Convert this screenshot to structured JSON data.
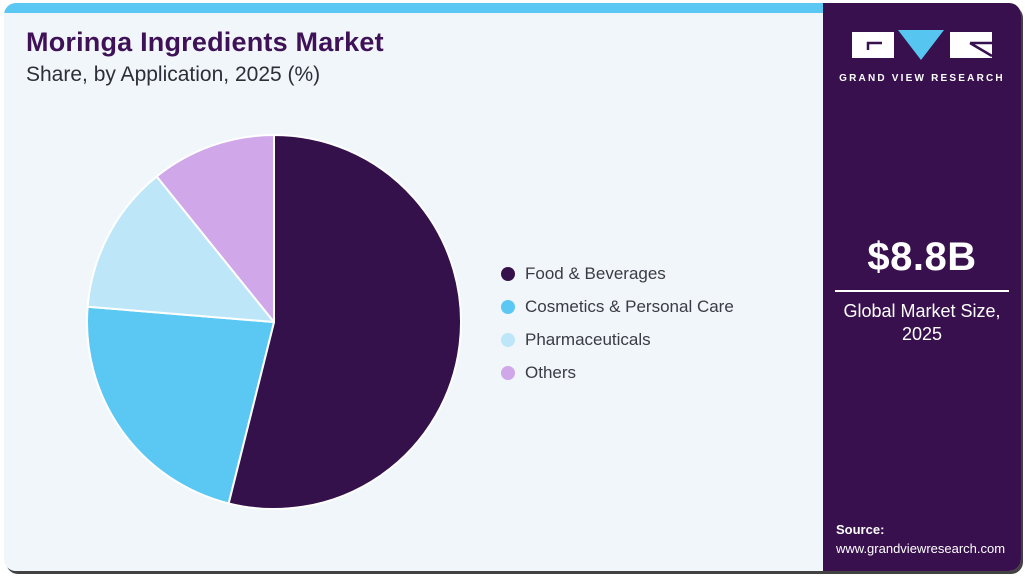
{
  "header": {
    "title": "Moringa Ingredients Market",
    "subtitle": "Share, by Application, 2025 (%)"
  },
  "chart_data": {
    "type": "pie",
    "title": "Moringa Ingredients Market Share, by Application, 2025 (%)",
    "categories": [
      "Food & Beverages",
      "Cosmetics & Personal Care",
      "Pharmaceuticals",
      "Others"
    ],
    "values": [
      53.9,
      22.4,
      12.9,
      10.8
    ],
    "unit": "%",
    "colors": [
      "#35114b",
      "#5bc8f3",
      "#bde7f8",
      "#d0a7e9"
    ],
    "start_angle_deg": 0,
    "direction": "clockwise",
    "legend_position": "right",
    "slice_stroke": "#ffffff"
  },
  "sidebar": {
    "logo": {
      "icon": "gvr-logo",
      "brand": "GRAND VIEW RESEARCH",
      "triangle_color": "#56c6f1",
      "block_color": "#ffffff"
    },
    "market_size": {
      "value": "$8.8B",
      "label": "Global Market Size, 2025"
    },
    "source": {
      "label": "Source:",
      "url": "www.grandviewresearch.com"
    }
  },
  "theme": {
    "top_strip": "#5bc8f3",
    "panel_bg": "#f1f6fa",
    "sidebar_bg": "#38104e",
    "title_color": "#3f1257",
    "legend_text": "#3b3b45"
  }
}
